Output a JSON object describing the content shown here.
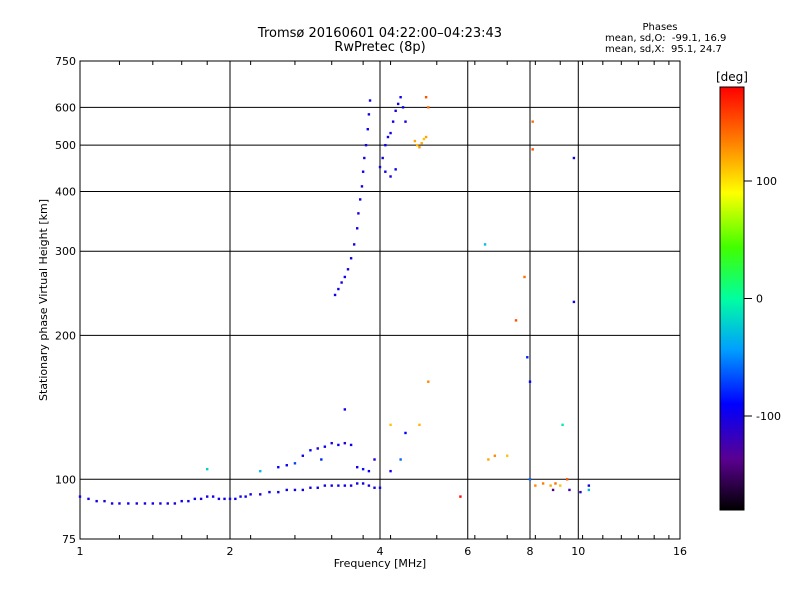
{
  "header": {
    "title": "Tromsø 20160601 04:22:00–04:23:43",
    "subtitle": "RwPretec (8p)",
    "stats_title": "Phases",
    "stat_o": "mean, sd,O:  -99.1, 16.9",
    "stat_x": "mean, sd,X:  95.1, 24.7"
  },
  "colorbar": {
    "unit": "[deg]",
    "ticks": [
      {
        "value": 100,
        "label": "100"
      },
      {
        "value": 0,
        "label": "0"
      },
      {
        "value": -100,
        "label": "-100"
      }
    ],
    "range": [
      -180,
      180
    ]
  },
  "chart_data": {
    "type": "scatter",
    "title": "Tromsø 20160601 04:22:00–04:23:43",
    "subtitle": "RwPretec (8p)",
    "xlabel": "Frequency [MHz]",
    "ylabel": "Stationary phase Virtual Height [km]",
    "x_scale": "log",
    "y_scale": "log",
    "xlim": [
      1,
      16
    ],
    "ylim": [
      75,
      750
    ],
    "x_ticks": [
      1,
      2,
      4,
      6,
      8,
      10,
      16
    ],
    "x_tick_labels": [
      "1",
      "2",
      "4",
      "6",
      "8",
      "10",
      "16"
    ],
    "y_ticks": [
      75,
      100,
      200,
      300,
      400,
      500,
      600,
      750
    ],
    "y_tick_labels": [
      "75",
      "100",
      "200",
      "300",
      "400",
      "500",
      "600",
      "750"
    ],
    "grid": true,
    "color_scale": "phase in degrees (rainbow, -180 to 180)",
    "series": [
      {
        "points": [
          [
            1.0,
            92,
            -95
          ],
          [
            1.04,
            91,
            -100
          ],
          [
            1.08,
            90,
            -98
          ],
          [
            1.12,
            90,
            -105
          ],
          [
            1.16,
            89,
            -97
          ],
          [
            1.2,
            89,
            -100
          ],
          [
            1.25,
            89,
            -94
          ],
          [
            1.3,
            89,
            -102
          ],
          [
            1.35,
            89,
            -99
          ],
          [
            1.4,
            89,
            -96
          ],
          [
            1.45,
            89,
            -101
          ],
          [
            1.5,
            89,
            -98
          ],
          [
            1.55,
            89,
            -103
          ],
          [
            1.6,
            90,
            -97
          ],
          [
            1.65,
            90,
            -100
          ],
          [
            1.7,
            91,
            -95
          ],
          [
            1.75,
            91,
            -104
          ],
          [
            1.8,
            92,
            -99
          ],
          [
            1.85,
            92,
            -96
          ],
          [
            1.9,
            91,
            -101
          ],
          [
            1.95,
            91,
            -98
          ],
          [
            2.0,
            91,
            -100
          ],
          [
            2.05,
            91,
            -94
          ],
          [
            2.1,
            92,
            -102
          ],
          [
            2.15,
            92,
            -97
          ],
          [
            2.2,
            93,
            -99
          ],
          [
            2.3,
            93,
            -103
          ],
          [
            2.4,
            94,
            -96
          ],
          [
            2.5,
            94,
            -100
          ],
          [
            2.6,
            95,
            -98
          ],
          [
            2.7,
            95,
            -101
          ],
          [
            2.8,
            95,
            -97
          ],
          [
            2.9,
            96,
            -100
          ],
          [
            3.0,
            96,
            -95
          ],
          [
            3.1,
            97,
            -103
          ],
          [
            3.2,
            97,
            -98
          ],
          [
            3.3,
            97,
            -100
          ],
          [
            3.4,
            97,
            -96
          ],
          [
            3.5,
            97,
            -102
          ],
          [
            3.6,
            98,
            -99
          ],
          [
            3.7,
            98,
            -97
          ],
          [
            3.8,
            97,
            -101
          ],
          [
            3.9,
            96,
            -98
          ],
          [
            4.0,
            96,
            -100
          ],
          [
            2.5,
            106,
            -90
          ],
          [
            2.6,
            107,
            -95
          ],
          [
            2.7,
            108,
            -70
          ],
          [
            2.8,
            112,
            -100
          ],
          [
            2.9,
            115,
            -88
          ],
          [
            3.0,
            116,
            -105
          ],
          [
            3.05,
            110,
            -80
          ],
          [
            3.1,
            117,
            -95
          ],
          [
            3.2,
            119,
            -100
          ],
          [
            3.3,
            118,
            -92
          ],
          [
            3.4,
            119,
            -110
          ],
          [
            3.5,
            118,
            -96
          ],
          [
            3.6,
            106,
            -100
          ],
          [
            3.7,
            105,
            -85
          ],
          [
            3.8,
            104,
            -98
          ],
          [
            3.9,
            110,
            -102
          ],
          [
            4.2,
            104,
            -95
          ],
          [
            4.4,
            110,
            -60
          ],
          [
            4.5,
            125,
            -90
          ],
          [
            3.4,
            140,
            -100
          ],
          [
            4.8,
            130,
            115
          ],
          [
            5.0,
            160,
            130
          ],
          [
            4.2,
            130,
            110
          ],
          [
            2.3,
            104,
            -30
          ],
          [
            1.8,
            105,
            -20
          ],
          [
            3.25,
            243,
            -100
          ],
          [
            3.3,
            250,
            -98
          ],
          [
            3.35,
            258,
            -102
          ],
          [
            3.4,
            265,
            -96
          ],
          [
            3.45,
            275,
            -100
          ],
          [
            3.5,
            290,
            -97
          ],
          [
            3.55,
            310,
            -101
          ],
          [
            3.6,
            335,
            -99
          ],
          [
            3.62,
            360,
            -103
          ],
          [
            3.65,
            385,
            -98
          ],
          [
            3.68,
            410,
            -100
          ],
          [
            3.7,
            440,
            -96
          ],
          [
            3.72,
            470,
            -102
          ],
          [
            3.75,
            500,
            -99
          ],
          [
            3.78,
            540,
            -97
          ],
          [
            3.8,
            580,
            -101
          ],
          [
            3.82,
            620,
            -100
          ],
          [
            4.0,
            450,
            -100
          ],
          [
            4.05,
            470,
            -97
          ],
          [
            4.1,
            500,
            -101
          ],
          [
            4.15,
            520,
            -98
          ],
          [
            4.2,
            530,
            -100
          ],
          [
            4.25,
            560,
            -96
          ],
          [
            4.3,
            590,
            -102
          ],
          [
            4.35,
            610,
            -99
          ],
          [
            4.4,
            630,
            -100
          ],
          [
            4.45,
            600,
            -97
          ],
          [
            4.5,
            560,
            -101
          ],
          [
            4.1,
            440,
            -98
          ],
          [
            4.2,
            430,
            -100
          ],
          [
            4.3,
            445,
            -95
          ],
          [
            4.7,
            510,
            120
          ],
          [
            4.75,
            500,
            115
          ],
          [
            4.8,
            495,
            125
          ],
          [
            4.85,
            505,
            118
          ],
          [
            4.9,
            515,
            110
          ],
          [
            4.95,
            520,
            122
          ],
          [
            5.0,
            600,
            140
          ],
          [
            4.95,
            630,
            150
          ],
          [
            6.5,
            310,
            -30
          ],
          [
            6.6,
            110,
            120
          ],
          [
            6.8,
            112,
            130
          ],
          [
            7.2,
            112,
            110
          ],
          [
            7.5,
            215,
            150
          ],
          [
            7.8,
            265,
            140
          ],
          [
            7.9,
            180,
            -80
          ],
          [
            8.0,
            160,
            -90
          ],
          [
            8.0,
            100,
            -60
          ],
          [
            8.2,
            97,
            130
          ],
          [
            8.5,
            98,
            135
          ],
          [
            8.8,
            97,
            120
          ],
          [
            8.9,
            95,
            -140
          ],
          [
            9.0,
            98,
            140
          ],
          [
            9.2,
            97,
            110
          ],
          [
            9.3,
            130,
            -10
          ],
          [
            9.5,
            100,
            150
          ],
          [
            9.6,
            95,
            -120
          ],
          [
            9.8,
            470,
            -100
          ],
          [
            9.8,
            235,
            -100
          ],
          [
            10.1,
            94,
            -110
          ],
          [
            10.5,
            97,
            -100
          ],
          [
            10.5,
            95,
            -30
          ],
          [
            8.1,
            560,
            140
          ],
          [
            8.1,
            490,
            150
          ],
          [
            5.8,
            92,
            175
          ]
        ]
      }
    ]
  }
}
